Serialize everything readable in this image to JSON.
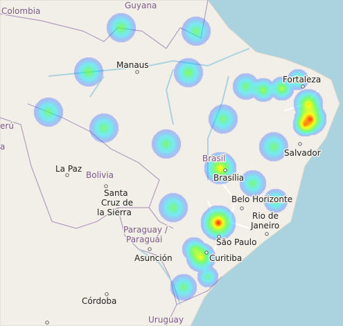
{
  "map": {
    "colors": {
      "ocean": "#aad3df",
      "land": "#f2efe9",
      "border": "#b49cbd",
      "river": "#aad3df"
    },
    "country_labels": {
      "colombia": "Colombia",
      "guyana": "Guyana",
      "peru": "erú",
      "bolivia": "Bolivia",
      "brasil": "Brasil",
      "paraguay_1": "Paraguay /",
      "paraguay_2": "Paraguái",
      "uruguay": "Uruguay",
      "edge_a": "a"
    },
    "city_labels": {
      "manaus": "Manaus",
      "fortaleza": "Fortaleza",
      "salvador": "Salvador",
      "brasilia": "Brasília",
      "la_paz": "La Paz",
      "santa_cruz_1": "Santa",
      "santa_cruz_2": "Cruz de",
      "santa_cruz_3": "la Sierra",
      "belo_horizonte": "Belo Horizonte",
      "rio_1": "Rio de",
      "rio_2": "Janeiro",
      "sao_paulo": "São Paulo",
      "curitiba": "Curitiba",
      "asuncion": "Asunción",
      "cordoba": "Córdoba"
    },
    "heat_colors": [
      "#3a3aff",
      "#00e5ff",
      "#4cff40",
      "#ffff00",
      "#ff0000"
    ]
  }
}
